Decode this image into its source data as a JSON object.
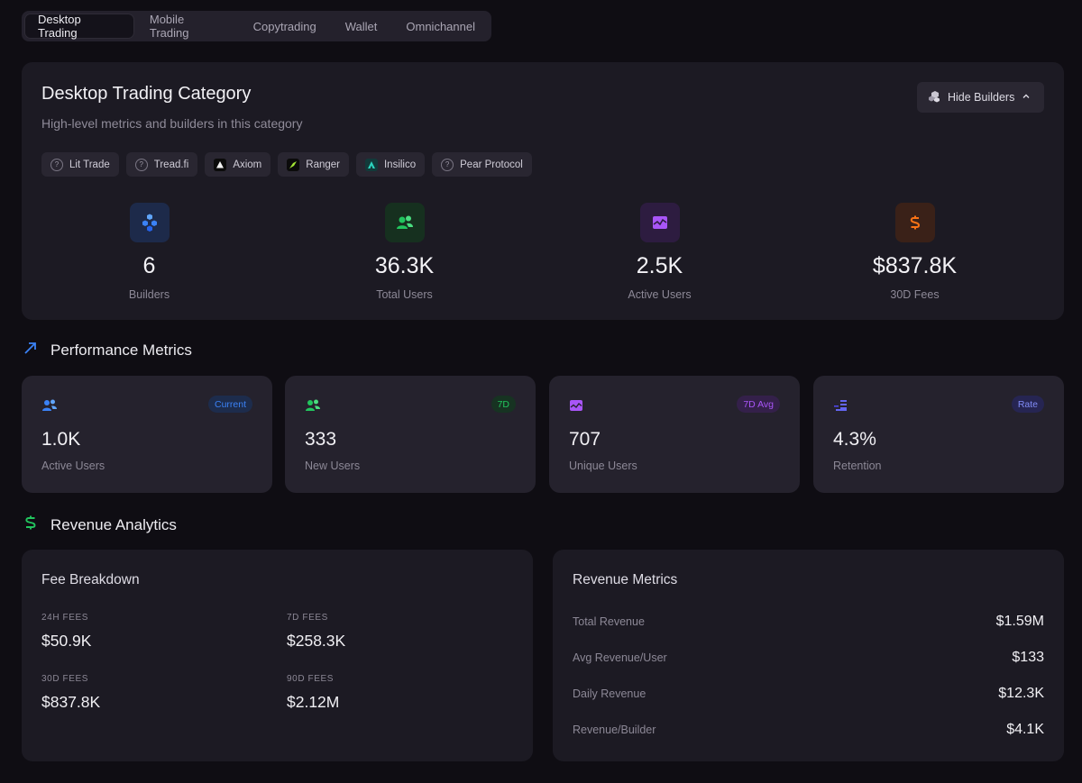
{
  "tabs": [
    {
      "label": "Desktop Trading",
      "active": true
    },
    {
      "label": "Mobile Trading",
      "active": false
    },
    {
      "label": "Copytrading",
      "active": false
    },
    {
      "label": "Wallet",
      "active": false
    },
    {
      "label": "Omnichannel",
      "active": false
    }
  ],
  "category": {
    "title": "Desktop Trading Category",
    "subtitle": "High-level metrics and builders in this category",
    "hide_builders_label": "Hide Builders",
    "builders": [
      {
        "name": "Lit Trade",
        "icon": "question-icon"
      },
      {
        "name": "Tread.fi",
        "icon": "question-icon"
      },
      {
        "name": "Axiom",
        "icon": "axiom-logo-icon"
      },
      {
        "name": "Ranger",
        "icon": "ranger-logo-icon"
      },
      {
        "name": "Insilico",
        "icon": "insilico-logo-icon"
      },
      {
        "name": "Pear Protocol",
        "icon": "question-icon"
      }
    ],
    "stats": [
      {
        "value": "6",
        "label": "Builders",
        "icon": "cubes-icon",
        "color": "#3b82f6"
      },
      {
        "value": "36.3K",
        "label": "Total Users",
        "icon": "users-icon",
        "color": "#22c55e"
      },
      {
        "value": "2.5K",
        "label": "Active Users",
        "icon": "activity-icon",
        "color": "#a855f7"
      },
      {
        "value": "$837.8K",
        "label": "30D Fees",
        "icon": "dollar-icon",
        "color": "#f97316"
      }
    ]
  },
  "performance": {
    "title": "Performance Metrics",
    "icon": "trend-arrow-icon",
    "metrics": [
      {
        "value": "1.0K",
        "label": "Active Users",
        "badge": "Current",
        "icon": "users-icon",
        "color": "#3b82f6"
      },
      {
        "value": "333",
        "label": "New Users",
        "badge": "7D",
        "icon": "users-icon",
        "color": "#22c55e"
      },
      {
        "value": "707",
        "label": "Unique Users",
        "badge": "7D Avg",
        "icon": "activity-icon",
        "color": "#a855f7"
      },
      {
        "value": "4.3%",
        "label": "Retention",
        "badge": "Rate",
        "icon": "list-icon",
        "color": "#6366f1"
      }
    ]
  },
  "revenue": {
    "title": "Revenue Analytics",
    "icon": "dollar-icon",
    "fee_breakdown": {
      "title": "Fee Breakdown",
      "items": [
        {
          "label": "24H FEES",
          "value": "$50.9K"
        },
        {
          "label": "7D FEES",
          "value": "$258.3K"
        },
        {
          "label": "30D FEES",
          "value": "$837.8K"
        },
        {
          "label": "90D FEES",
          "value": "$2.12M"
        }
      ]
    },
    "revenue_metrics": {
      "title": "Revenue Metrics",
      "rows": [
        {
          "label": "Total Revenue",
          "value": "$1.59M"
        },
        {
          "label": "Avg Revenue/User",
          "value": "$133"
        },
        {
          "label": "Daily Revenue",
          "value": "$12.3K"
        },
        {
          "label": "Revenue/Builder",
          "value": "$4.1K"
        }
      ]
    }
  }
}
